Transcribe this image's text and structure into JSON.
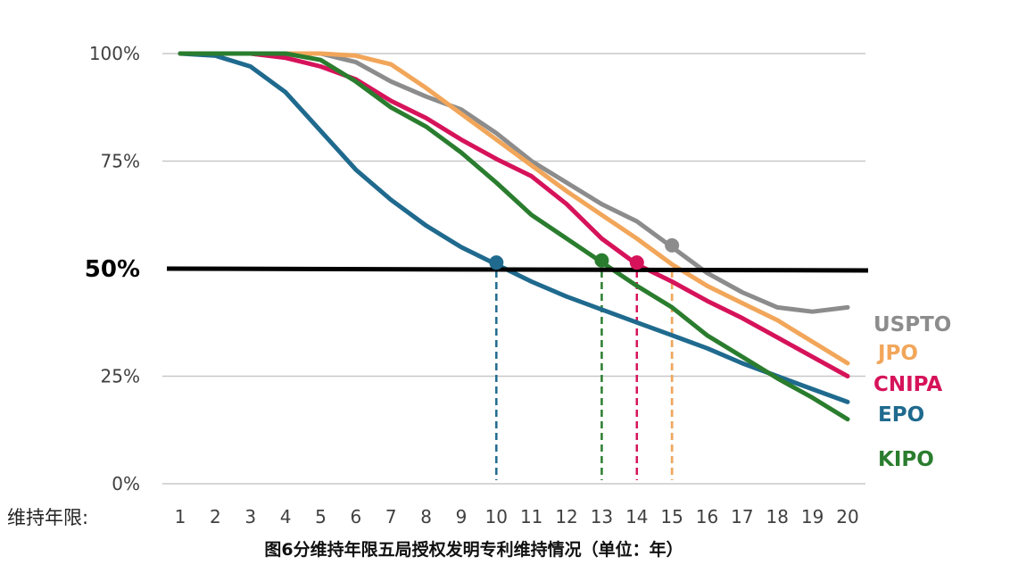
{
  "chart_data": {
    "type": "line",
    "xlabel": "维持年限:",
    "caption": "图6分维持年限五局授权发明专利维持情况（单位：年）",
    "x": [
      1,
      2,
      3,
      4,
      5,
      6,
      7,
      8,
      9,
      10,
      11,
      12,
      13,
      14,
      15,
      16,
      17,
      18,
      19,
      20
    ],
    "ylim": [
      0,
      100
    ],
    "y_ticks": [
      {
        "value": 0,
        "label": "0%"
      },
      {
        "value": 25,
        "label": "25%"
      },
      {
        "value": 50,
        "label": "50%",
        "emphasis": true
      },
      {
        "value": 75,
        "label": "75%"
      },
      {
        "value": 100,
        "label": "100%"
      }
    ],
    "reference_line": {
      "value": 50,
      "color": "#000000"
    },
    "grid": true,
    "series": [
      {
        "name": "USPTO",
        "color": "#8c8c8c",
        "values": [
          100,
          100,
          100,
          100,
          100,
          98,
          93.5,
          90,
          87,
          81.5,
          75,
          70,
          65,
          61,
          55,
          49,
          44.5,
          41,
          40,
          41
        ],
        "half_life": 15
      },
      {
        "name": "JPO",
        "color": "#f2a65a",
        "values": [
          100,
          100,
          100,
          100,
          100,
          99.5,
          97.5,
          92,
          86,
          80,
          74,
          68,
          62.5,
          57,
          51,
          46,
          42,
          38,
          33,
          28
        ],
        "half_life": 15
      },
      {
        "name": "CNIPA",
        "color": "#d6135a",
        "values": [
          100,
          100,
          100,
          99,
          97,
          94,
          89,
          85,
          80,
          75.5,
          71.5,
          65,
          57,
          51,
          47,
          42.5,
          38.5,
          34,
          29.5,
          25
        ],
        "half_life": 14
      },
      {
        "name": "EPO",
        "color": "#1f6a8e",
        "values": [
          100,
          99.5,
          97,
          91,
          82,
          73,
          66,
          60,
          55,
          51,
          47,
          43.5,
          40.5,
          37.5,
          34.5,
          31.5,
          28,
          25,
          22,
          19
        ],
        "half_life": 10
      },
      {
        "name": "KIPO",
        "color": "#2a7d2e",
        "values": [
          100,
          100,
          100,
          100,
          98.5,
          93.5,
          87.5,
          83,
          77,
          70,
          62.5,
          57,
          51.5,
          46,
          41,
          34.5,
          29.5,
          24.5,
          20,
          15
        ],
        "half_life": 13
      }
    ]
  }
}
